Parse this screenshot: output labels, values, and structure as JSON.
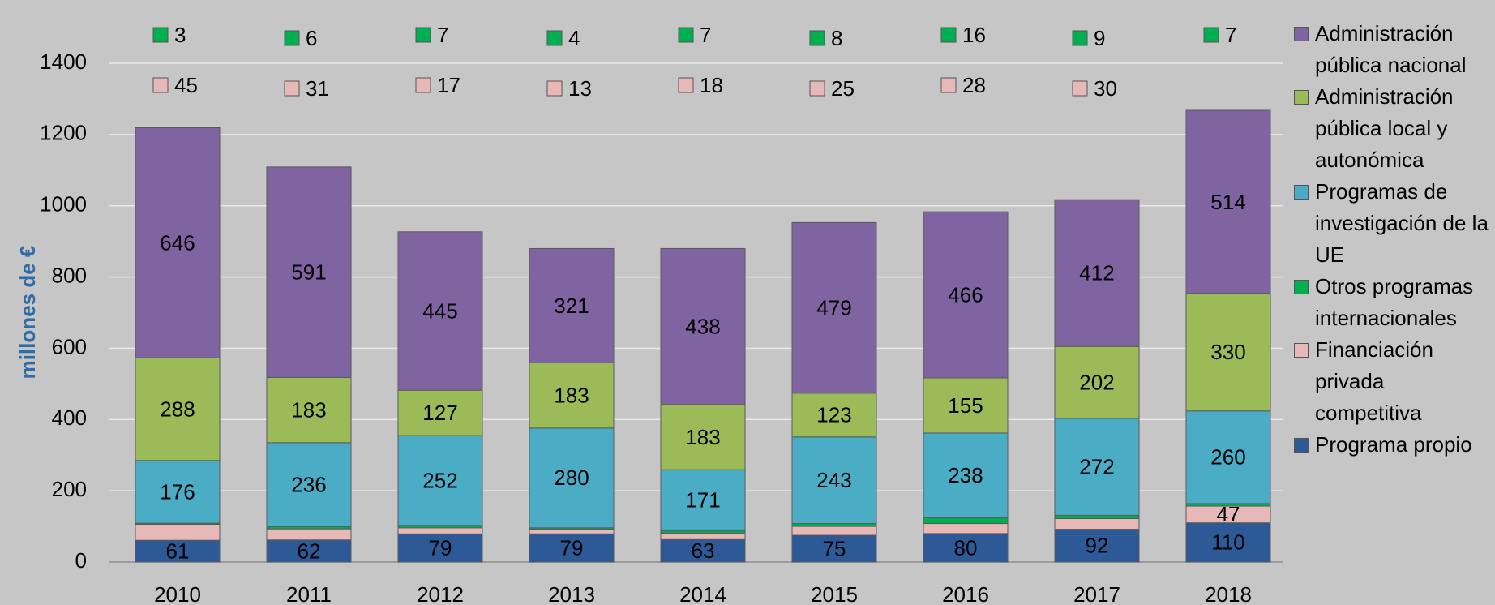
{
  "chart_data": {
    "type": "stacked_bar",
    "y_label": "millones de €",
    "categories": [
      "2010",
      "2011",
      "2012",
      "2013",
      "2014",
      "2015",
      "2016",
      "2017",
      "2018"
    ],
    "series": [
      {
        "name": "Programa propio",
        "color": "#2d5a96",
        "values": [
          61,
          62,
          79,
          79,
          63,
          75,
          80,
          92,
          110
        ]
      },
      {
        "name": "Financiación privada competitiva",
        "color": "#e6b9b8",
        "values": [
          45,
          31,
          17,
          13,
          18,
          25,
          28,
          30,
          47
        ]
      },
      {
        "name": "Otros programas internacionales",
        "color": "#00b050",
        "values": [
          3,
          6,
          7,
          4,
          7,
          8,
          16,
          9,
          7
        ]
      },
      {
        "name": "Programas de investigación de la UE",
        "color": "#4bacc6",
        "values": [
          176,
          236,
          252,
          280,
          171,
          243,
          238,
          272,
          260
        ]
      },
      {
        "name": "Administración pública local y autonómica",
        "color": "#9bbb59",
        "values": [
          288,
          183,
          127,
          183,
          183,
          123,
          155,
          202,
          330
        ]
      },
      {
        "name": "Administración pública nacional",
        "color": "#8064a2",
        "values": [
          646,
          591,
          445,
          321,
          438,
          479,
          466,
          412,
          514
        ]
      }
    ],
    "ylim": [
      0,
      1400
    ],
    "yticks": [
      0,
      200,
      400,
      600,
      800,
      1000,
      1200,
      1400
    ],
    "grid": true
  }
}
